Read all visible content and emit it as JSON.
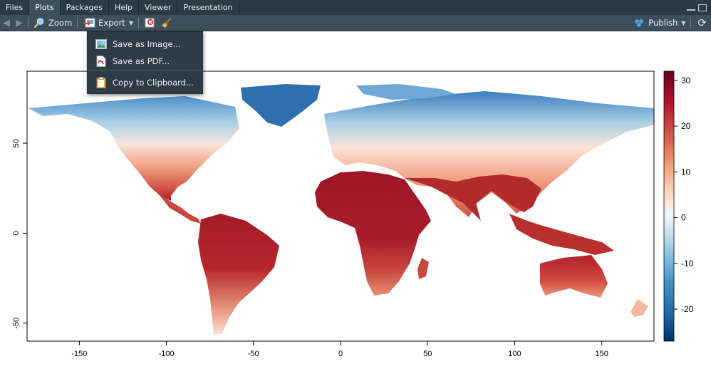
{
  "tabs": [
    {
      "label": "Files",
      "active": false
    },
    {
      "label": "Plots",
      "active": true
    },
    {
      "label": "Packages",
      "active": false
    },
    {
      "label": "Help",
      "active": false
    },
    {
      "label": "Viewer",
      "active": false
    },
    {
      "label": "Presentation",
      "active": false
    }
  ],
  "toolbar": {
    "zoom_label": "Zoom",
    "export_label": "Export",
    "publish_label": "Publish"
  },
  "export_menu": {
    "items": [
      {
        "label": "Save as Image..."
      },
      {
        "label": "Save as PDF..."
      },
      {
        "label": "Copy to Clipboard..."
      }
    ]
  },
  "chart_data": {
    "type": "heatmap",
    "title": "",
    "xlabel": "",
    "ylabel": "",
    "xlim": [
      -180,
      180
    ],
    "ylim": [
      -60,
      90
    ],
    "x_ticks": [
      -150,
      -100,
      -50,
      0,
      50,
      100,
      150
    ],
    "y_ticks": [
      -50,
      0,
      50
    ],
    "colorbar": {
      "range": [
        -27,
        32
      ],
      "ticks": [
        30,
        20,
        10,
        0,
        -10,
        -20
      ],
      "palette": [
        "#053061",
        "#2166ac",
        "#4393c3",
        "#92c5de",
        "#d1e5f0",
        "#f7f7f7",
        "#fddbc7",
        "#f4a582",
        "#d6604d",
        "#b2182b",
        "#67001f"
      ]
    }
  }
}
